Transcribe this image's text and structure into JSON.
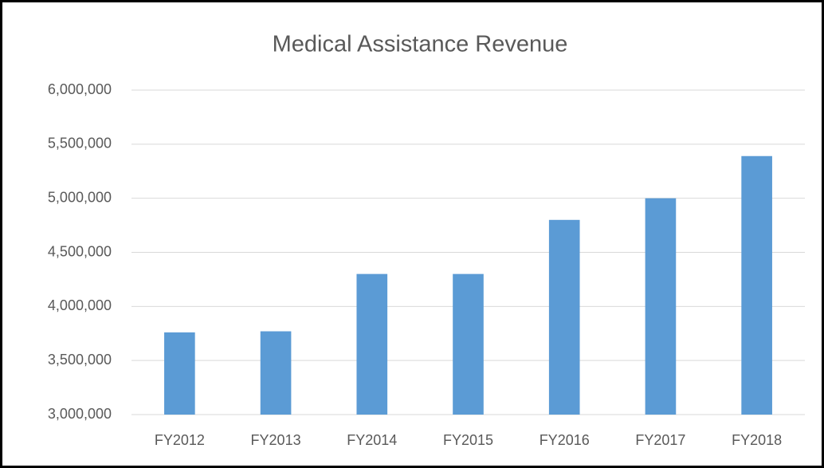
{
  "chart_data": {
    "type": "bar",
    "title": "Medical Assistance Revenue",
    "categories": [
      "FY2012",
      "FY2013",
      "FY2014",
      "FY2015",
      "FY2016",
      "FY2017",
      "FY2018"
    ],
    "values": [
      3760000,
      3770000,
      4300000,
      4300000,
      4800000,
      5000000,
      5390000
    ],
    "color": "#5b9bd5",
    "ylim": [
      3000000,
      6000000
    ],
    "yticks": [
      {
        "value": 3000000,
        "label": "3,000,000"
      },
      {
        "value": 3500000,
        "label": "3,500,000"
      },
      {
        "value": 4000000,
        "label": "4,000,000"
      },
      {
        "value": 4500000,
        "label": "4,500,000"
      },
      {
        "value": 5000000,
        "label": "5,000,000"
      },
      {
        "value": 5500000,
        "label": "5,500,000"
      },
      {
        "value": 6000000,
        "label": "6,000,000"
      }
    ],
    "grid": true
  }
}
